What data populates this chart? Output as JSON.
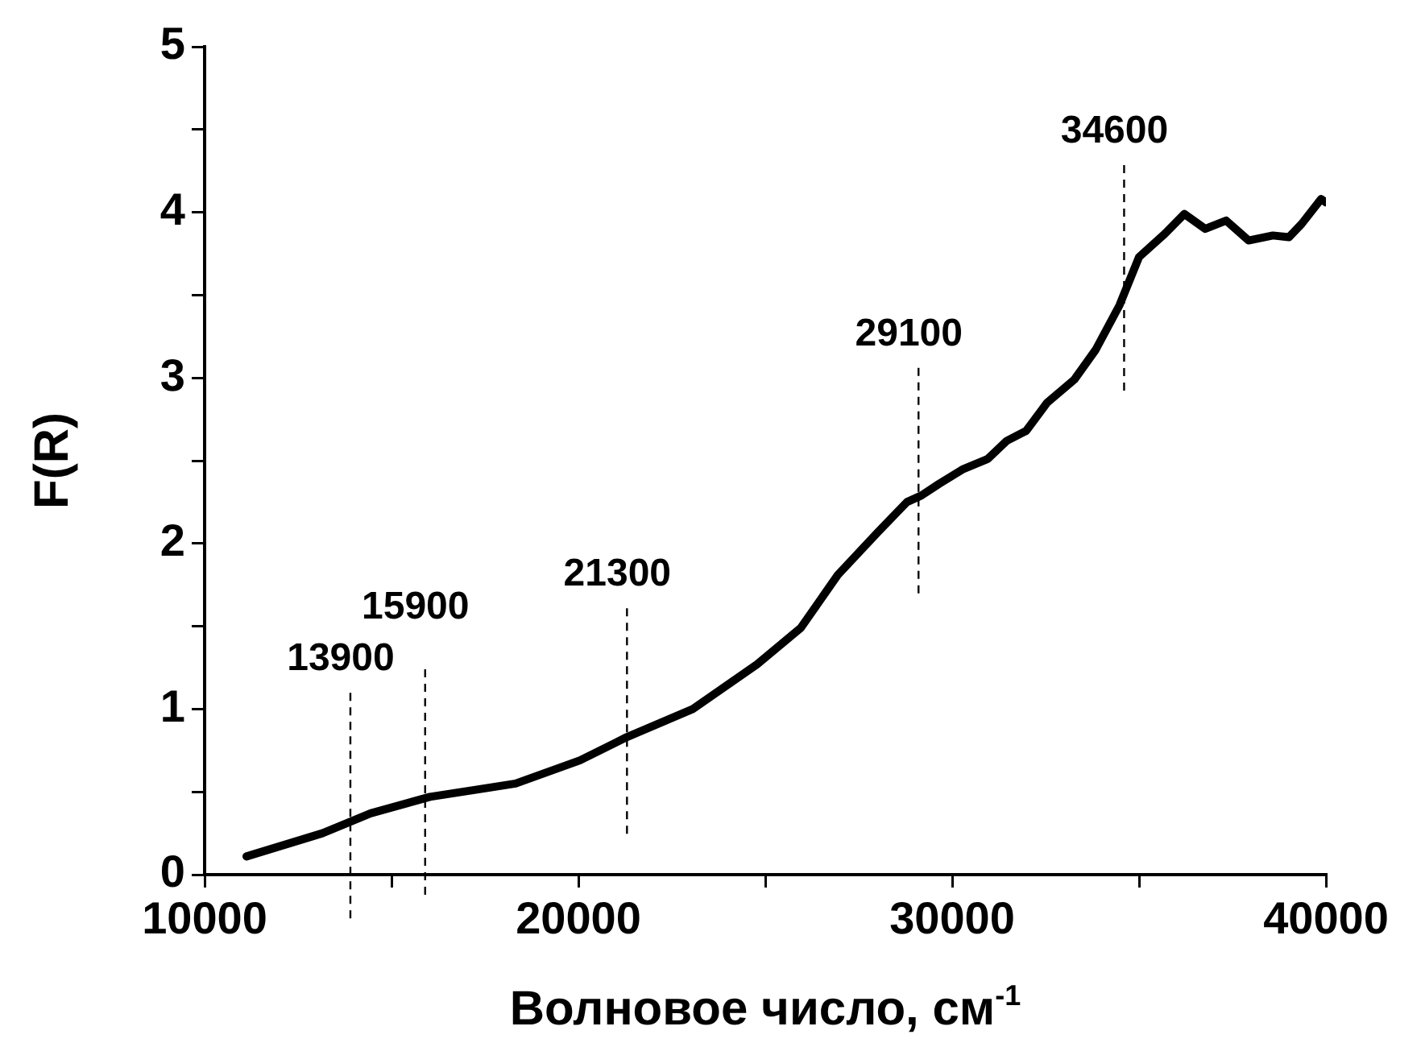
{
  "chart_data": {
    "type": "line",
    "xlabel": "Волновое число, см$^{-1}$",
    "ylabel": "F(R)",
    "x": [
      11120,
      13150,
      14440,
      16030,
      17460,
      18320,
      20040,
      21290,
      23060,
      24780,
      25950,
      26940,
      28020,
      28790,
      29180,
      29650,
      30300,
      30950,
      31460,
      31980,
      32540,
      33270,
      33840,
      34480,
      35000,
      35690,
      36210,
      36770,
      37330,
      37930,
      38580,
      39010,
      39350,
      39870,
      40000
    ],
    "series": [
      {
        "color": "#000000",
        "values": [
          0.11,
          0.25,
          0.37,
          0.47,
          0.52,
          0.55,
          0.69,
          0.83,
          1.0,
          1.27,
          1.49,
          1.81,
          2.07,
          2.25,
          2.29,
          2.36,
          2.45,
          2.51,
          2.62,
          2.68,
          2.85,
          2.99,
          3.17,
          3.44,
          3.73,
          3.87,
          3.99,
          3.9,
          3.95,
          3.83,
          3.86,
          3.85,
          3.93,
          4.08,
          4.06
        ]
      }
    ],
    "xlim": [
      10000,
      40000
    ],
    "xticks": [
      10000,
      {
        "value": 15000,
        "label": null
      },
      20000,
      {
        "value": 25000,
        "label": null
      },
      30000,
      {
        "value": 35000,
        "label": null
      },
      40000
    ],
    "ylim": [
      0,
      5
    ],
    "yticks": [
      0,
      {
        "value": 0.5,
        "label": null
      },
      1,
      {
        "value": 1.5,
        "label": null
      },
      2,
      {
        "value": 2.5,
        "label": null
      },
      3,
      {
        "value": 3.5,
        "label": null
      },
      4,
      {
        "value": 4.5,
        "label": null
      },
      5
    ],
    "ref_lines": [
      {
        "axis": "x",
        "value": 13900,
        "label": "13900",
        "line_style": "dashed",
        "color": "#000000"
      },
      {
        "axis": "x",
        "value": 15900,
        "label": "15900",
        "line_style": "dashed",
        "color": "#000000"
      },
      {
        "axis": "x",
        "value": 21300,
        "label": "21300",
        "line_style": "dashed",
        "color": "#000000"
      },
      {
        "axis": "x",
        "value": 29100,
        "label": "29100",
        "line_style": "dashed",
        "color": "#000000"
      },
      {
        "axis": "x",
        "value": 34600,
        "label": "34600",
        "line_style": "dashed",
        "color": "#000000"
      }
    ],
    "grid": false,
    "legend": false,
    "marker": "none",
    "line_style": "solid"
  }
}
